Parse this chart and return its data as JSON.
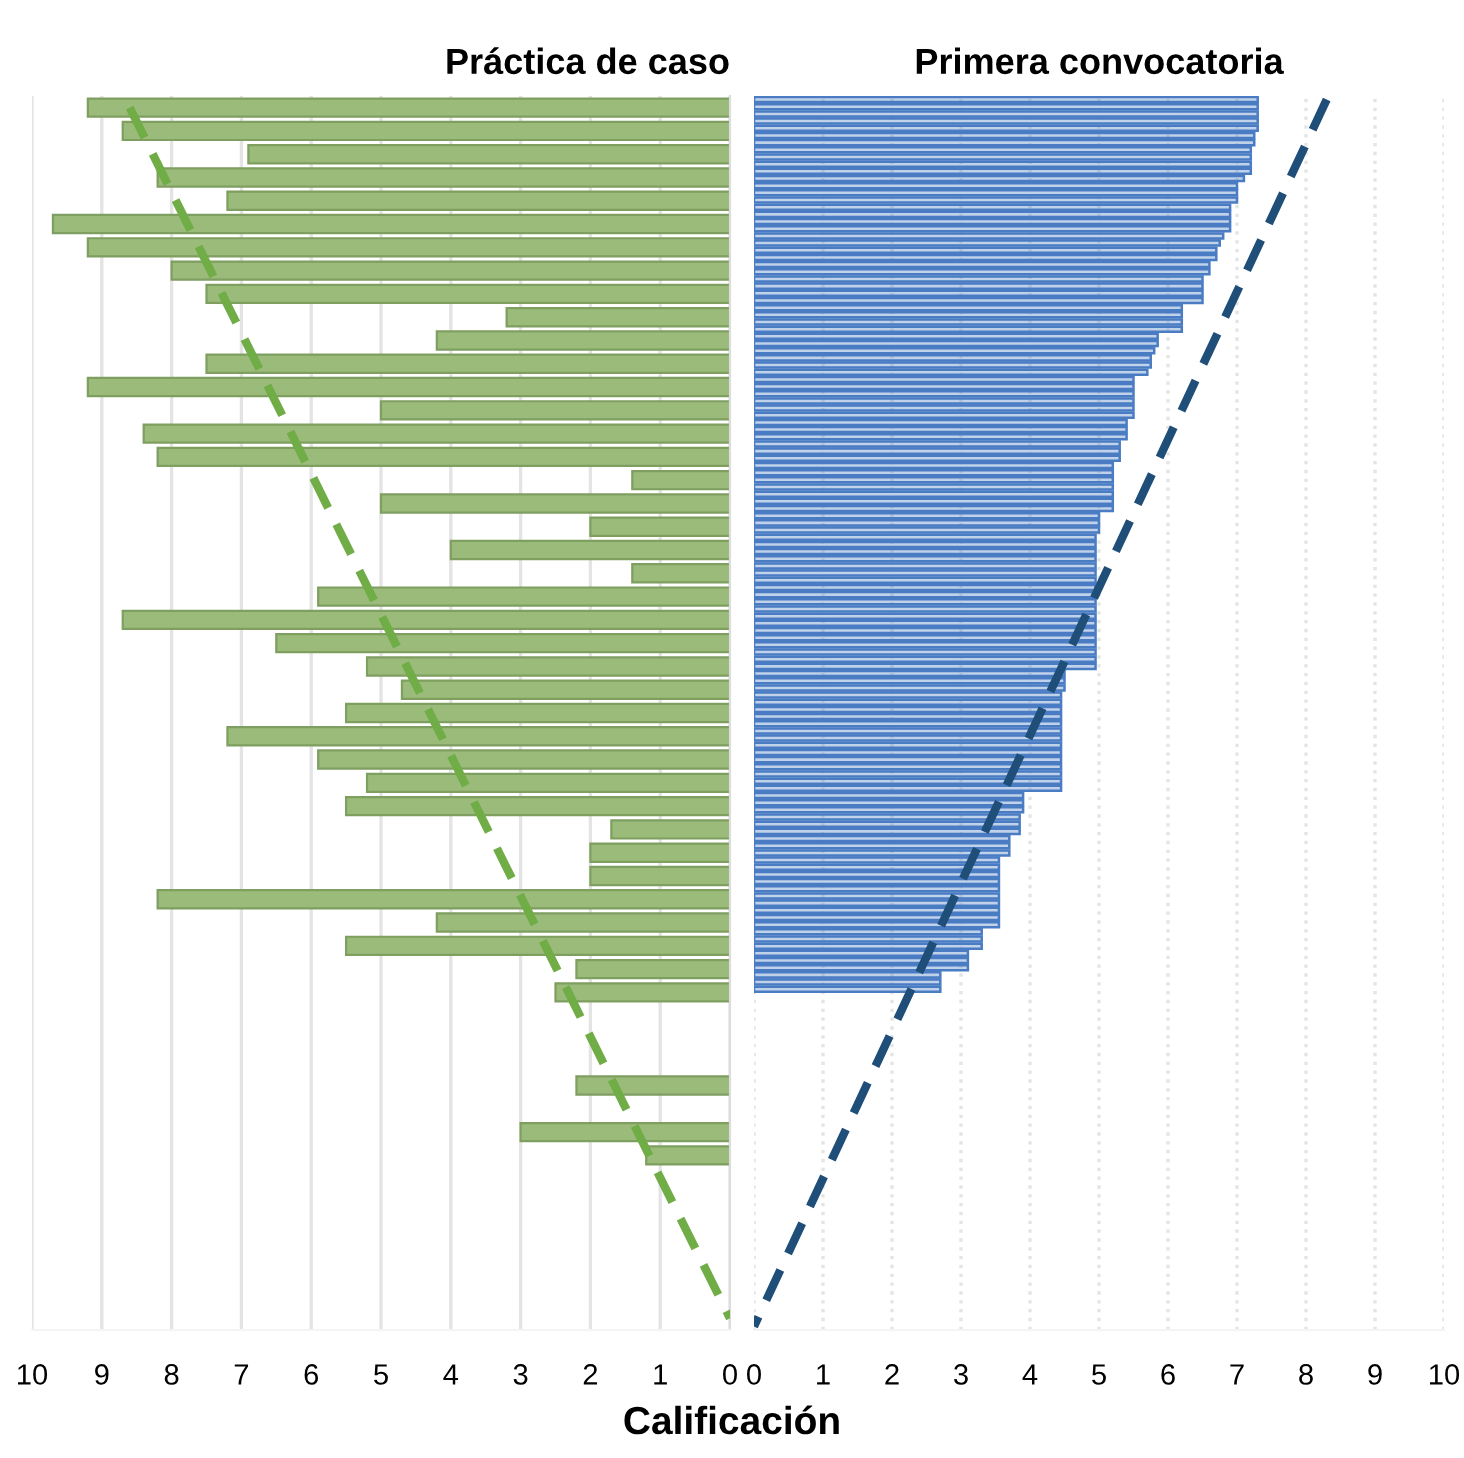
{
  "chart_data": [
    {
      "type": "bar",
      "orientation": "horizontal",
      "title": "Práctica de caso",
      "xlabel": "Calificación",
      "categories": [
        null,
        null,
        null,
        null,
        null,
        null,
        null,
        null,
        null,
        null,
        null,
        null,
        null,
        null,
        null,
        null,
        null,
        null,
        null,
        null,
        null,
        null,
        null,
        null,
        null,
        null,
        null,
        null,
        null,
        null,
        null,
        null,
        null,
        null,
        null,
        null,
        null,
        null,
        null,
        null,
        null,
        null,
        null,
        null,
        null,
        null,
        null,
        null,
        null,
        null,
        null,
        null,
        null
      ],
      "series": [
        {
          "color": "#9bbb7a",
          "values": [
            9.2,
            8.7,
            6.9,
            8.2,
            7.2,
            9.7,
            9.2,
            8.0,
            7.5,
            3.2,
            4.2,
            7.5,
            9.2,
            5.0,
            8.4,
            8.2,
            1.4,
            5.0,
            2.0,
            4.0,
            1.4,
            5.9,
            8.7,
            6.5,
            5.2,
            4.7,
            5.5,
            7.2,
            5.9,
            5.2,
            5.5,
            1.7,
            2.0,
            2.0,
            8.2,
            4.2,
            5.5,
            2.2,
            2.5,
            null,
            null,
            null,
            2.2,
            null,
            3.0,
            1.2,
            null,
            null,
            null,
            null,
            null,
            null,
            null
          ]
        },
        {
          "type": "line",
          "color": "#70ad47",
          "line_style": "dashed",
          "values": [
            8.6,
            null,
            null,
            null,
            null,
            null,
            null,
            null,
            null,
            null,
            null,
            null,
            null,
            null,
            null,
            null,
            null,
            null,
            null,
            null,
            null,
            null,
            null,
            null,
            null,
            null,
            null,
            null,
            null,
            null,
            null,
            null,
            null,
            null,
            null,
            null,
            null,
            null,
            null,
            null,
            null,
            null,
            null,
            null,
            null,
            null,
            null,
            null,
            null,
            null,
            null,
            null,
            0
          ]
        }
      ],
      "xlim": [
        10,
        0
      ],
      "xticks": [
        10,
        9,
        8,
        7,
        6,
        5,
        4,
        3,
        2,
        1,
        0
      ],
      "grid": "x",
      "tick_labels": "x"
    },
    {
      "type": "bar",
      "orientation": "horizontal",
      "title": "Primera convocatoria",
      "categories": [
        null,
        null,
        null,
        null,
        null,
        null,
        null,
        null,
        null,
        null,
        null,
        null,
        null,
        null,
        null,
        null,
        null,
        null,
        null,
        null,
        null,
        null,
        null,
        null,
        null,
        null,
        null,
        null,
        null,
        null,
        null,
        null,
        null,
        null,
        null,
        null,
        null,
        null,
        null,
        null,
        null,
        null,
        null,
        null,
        null,
        null,
        null,
        null,
        null,
        null,
        null,
        null,
        null,
        null,
        null,
        null,
        null,
        null,
        null,
        null,
        null,
        null,
        null,
        null,
        null,
        null,
        null,
        null,
        null,
        null,
        null,
        null,
        null,
        null,
        null,
        null,
        null,
        null,
        null,
        null,
        null,
        null,
        null,
        null,
        null,
        null,
        null,
        null,
        null,
        null,
        null,
        null,
        null,
        null,
        null,
        null,
        null,
        null,
        null,
        null,
        null,
        null,
        null,
        null,
        null,
        null,
        null,
        null,
        null,
        null,
        null,
        null,
        null,
        null,
        null,
        null,
        null,
        null,
        null,
        null,
        null,
        null,
        null,
        null,
        null,
        null,
        null,
        null,
        null,
        null,
        null,
        null,
        null,
        null,
        null,
        null,
        null,
        null,
        null,
        null,
        null,
        null,
        null,
        null,
        null,
        null,
        null,
        null,
        null,
        null,
        null,
        null,
        null,
        null,
        null,
        null,
        null,
        null,
        null,
        null,
        null,
        null,
        null,
        null,
        null,
        null,
        null,
        null,
        null,
        null,
        null,
        null
      ],
      "series": [
        {
          "color": "#4a7cc4",
          "values": [
            7.3,
            7.3,
            7.3,
            7.3,
            7.3,
            7.25,
            7.25,
            7.2,
            7.2,
            7.2,
            7.2,
            7.1,
            7.0,
            7.0,
            7.0,
            6.9,
            6.9,
            6.9,
            6.9,
            6.8,
            6.75,
            6.7,
            6.7,
            6.6,
            6.6,
            6.5,
            6.5,
            6.5,
            6.5,
            6.2,
            6.2,
            6.2,
            6.2,
            5.85,
            5.85,
            5.8,
            5.75,
            5.75,
            5.7,
            5.5,
            5.5,
            5.5,
            5.5,
            5.5,
            5.5,
            5.4,
            5.4,
            5.4,
            5.3,
            5.3,
            5.3,
            5.2,
            5.2,
            5.2,
            5.2,
            5.2,
            5.2,
            5.2,
            5.0,
            5.0,
            5.0,
            4.95,
            4.95,
            4.95,
            4.95,
            4.95,
            4.95,
            4.95,
            4.95,
            4.95,
            4.95,
            4.95,
            4.95,
            4.95,
            4.95,
            4.95,
            4.95,
            4.95,
            4.95,
            4.95,
            4.5,
            4.5,
            4.5,
            4.45,
            4.45,
            4.45,
            4.45,
            4.45,
            4.45,
            4.45,
            4.45,
            4.45,
            4.45,
            4.45,
            4.45,
            4.45,
            4.45,
            3.9,
            3.9,
            3.9,
            3.85,
            3.85,
            3.85,
            3.7,
            3.7,
            3.7,
            3.55,
            3.55,
            3.55,
            3.55,
            3.55,
            3.55,
            3.55,
            3.55,
            3.55,
            3.55,
            3.3,
            3.3,
            3.3,
            3.1,
            3.1,
            3.1,
            2.7,
            2.7,
            2.7,
            null,
            null,
            null,
            null,
            null,
            null,
            null,
            null,
            null,
            null,
            null,
            null,
            null,
            null,
            null,
            null,
            null,
            null,
            null,
            null,
            null,
            null,
            null,
            null,
            null,
            null,
            null,
            null,
            null,
            null,
            null,
            null,
            null,
            null,
            null,
            null,
            null,
            null,
            null,
            null,
            null,
            null,
            null,
            null,
            null,
            null,
            null
          ]
        },
        {
          "type": "line",
          "color": "#1f4e79",
          "line_style": "dashed",
          "values": [
            8.3,
            null,
            null,
            null,
            null,
            null,
            null,
            null,
            null,
            null,
            null,
            null,
            null,
            null,
            null,
            null,
            null,
            null,
            null,
            null,
            null,
            null,
            null,
            null,
            null,
            null,
            null,
            null,
            null,
            null,
            null,
            null,
            null,
            null,
            null,
            null,
            null,
            null,
            null,
            null,
            null,
            null,
            null,
            null,
            null,
            null,
            null,
            null,
            null,
            null,
            null,
            null,
            null,
            null,
            null,
            null,
            null,
            null,
            null,
            null,
            null,
            null,
            null,
            null,
            null,
            null,
            null,
            null,
            null,
            null,
            null,
            null,
            null,
            null,
            null,
            null,
            null,
            null,
            null,
            null,
            null,
            null,
            null,
            null,
            null,
            null,
            null,
            null,
            null,
            null,
            null,
            null,
            null,
            null,
            null,
            null,
            null,
            null,
            null,
            null,
            null,
            null,
            null,
            null,
            null,
            null,
            null,
            null,
            null,
            null,
            null,
            null,
            null,
            null,
            null,
            null,
            null,
            null,
            null,
            null,
            null,
            null,
            null,
            null,
            null,
            null,
            null,
            null,
            null,
            null,
            null,
            null,
            null,
            null,
            null,
            null,
            null,
            null,
            null,
            null,
            null,
            null,
            null,
            null,
            null,
            null,
            null,
            null,
            null,
            null,
            null,
            null,
            null,
            null,
            null,
            null,
            null,
            null,
            null,
            null,
            null,
            null,
            null,
            null,
            null,
            null,
            null,
            null,
            null,
            null,
            null,
            0
          ]
        }
      ],
      "xlim": [
        0,
        10
      ],
      "xticks": [
        0,
        1,
        2,
        3,
        4,
        5,
        6,
        7,
        8,
        9,
        10
      ],
      "grid": "x",
      "tick_labels": "x"
    }
  ]
}
